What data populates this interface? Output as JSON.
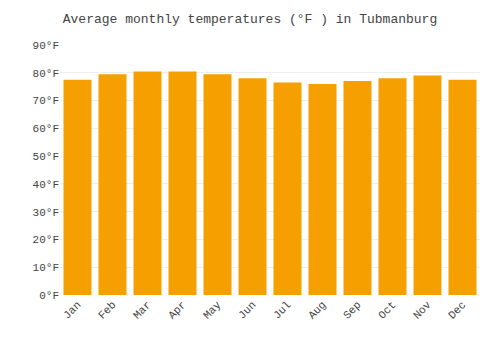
{
  "chart_data": {
    "type": "bar",
    "title": "Average monthly temperatures (°F ) in Tubmanburg",
    "categories": [
      "Jan",
      "Feb",
      "Mar",
      "Apr",
      "May",
      "Jun",
      "Jul",
      "Aug",
      "Sep",
      "Oct",
      "Nov",
      "Dec"
    ],
    "values": [
      77.5,
      79.5,
      80.5,
      80.5,
      79.5,
      78.0,
      76.5,
      76.0,
      77.0,
      78.0,
      79.0,
      77.5
    ],
    "color": "#F5A000",
    "ylim": [
      0,
      90
    ],
    "yticks": [
      {
        "value": 0,
        "label": "0°F"
      },
      {
        "value": 10,
        "label": "10°F"
      },
      {
        "value": 20,
        "label": "20°F"
      },
      {
        "value": 30,
        "label": "30°F"
      },
      {
        "value": 40,
        "label": "40°F"
      },
      {
        "value": 50,
        "label": "50°F"
      },
      {
        "value": 60,
        "label": "60°F"
      },
      {
        "value": 70,
        "label": "70°F"
      },
      {
        "value": 80,
        "label": "80°F"
      },
      {
        "value": 90,
        "label": "90°F"
      }
    ],
    "grid": true
  }
}
